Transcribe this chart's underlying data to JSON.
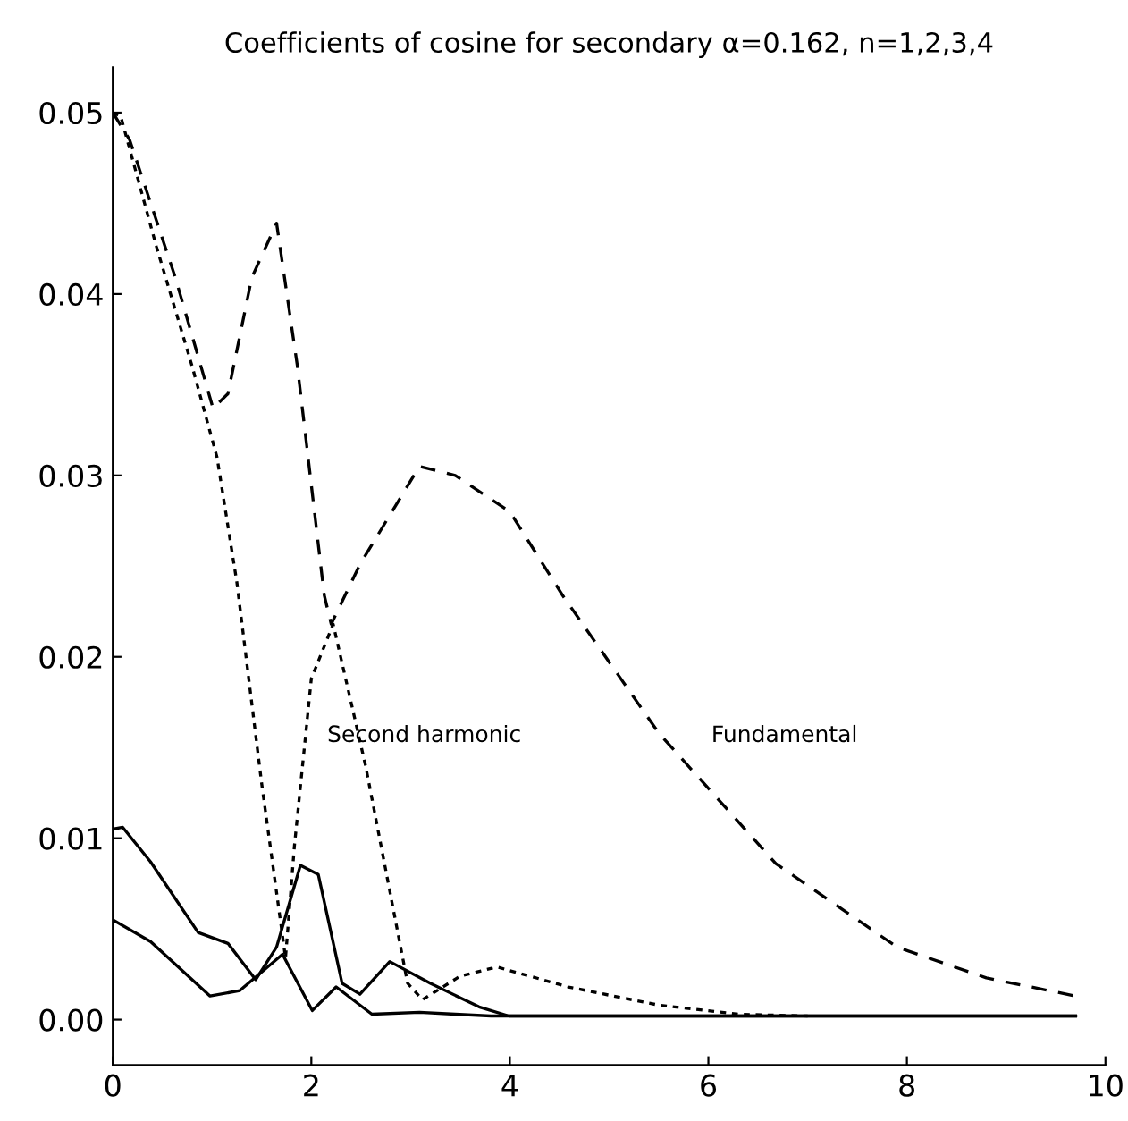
{
  "chart_data": {
    "type": "line",
    "title": "Coefficients of cosine for secondary α=0.162, n=1,2,3,4",
    "xlim": [
      0,
      10
    ],
    "xticks": [
      0,
      2,
      4,
      6,
      8,
      10
    ],
    "ylim": [
      -0.0025,
      0.0525
    ],
    "yticks": [
      {
        "value": 0,
        "label": "0.00"
      },
      {
        "value": 0.01,
        "label": "0.01"
      },
      {
        "value": 0.02,
        "label": "0.02"
      },
      {
        "value": 0.03,
        "label": "0.03"
      },
      {
        "value": 0.04,
        "label": "0.04"
      },
      {
        "value": 0.05,
        "label": "0.05"
      }
    ],
    "grid": false,
    "legend": false,
    "series": [
      {
        "color": "#000000",
        "line_style": "dashed",
        "x": [
          0,
          0.17,
          0.63,
          1.01,
          1.16,
          1.4,
          1.65,
          1.86,
          2.13,
          2.2,
          2.49,
          3.09,
          3.45,
          4.0,
          4.53,
          5.5,
          6.68,
          7.9,
          8.8,
          9.7
        ],
        "values": [
          0.05,
          0.0485,
          0.0409,
          0.0337,
          0.0345,
          0.0409,
          0.0439,
          0.036,
          0.0234,
          0.0218,
          0.0251,
          0.0305,
          0.03,
          0.028,
          0.0234,
          0.0158,
          0.0086,
          0.004,
          0.0023,
          0.0013
        ]
      },
      {
        "color": "#000000",
        "line_style": "dotted",
        "x": [
          0,
          0.08,
          0.44,
          0.8,
          1.05,
          1.25,
          1.5,
          1.74,
          1.83,
          2.0,
          2.22,
          2.55,
          2.97,
          3.12,
          3.5,
          3.87,
          4.59,
          5.5,
          6.3,
          7.0
        ],
        "values": [
          0.05,
          0.0498,
          0.0426,
          0.036,
          0.031,
          0.0241,
          0.013,
          0.0034,
          0.0096,
          0.0188,
          0.0218,
          0.0139,
          0.002,
          0.0011,
          0.0024,
          0.0029,
          0.0018,
          0.0008,
          0.0003,
          0.0002
        ]
      },
      {
        "color": "#000000",
        "line_style": "solid",
        "x": [
          0,
          0.1,
          0.38,
          0.86,
          1.16,
          1.44,
          1.65,
          1.89,
          2.07,
          2.31,
          2.49,
          2.79,
          3.2,
          3.69,
          3.99,
          9.7
        ],
        "values": [
          0.0105,
          0.0106,
          0.0087,
          0.0048,
          0.0042,
          0.0022,
          0.004,
          0.0085,
          0.008,
          0.002,
          0.0014,
          0.0032,
          0.002,
          0.0007,
          0.0002,
          0.0002
        ]
      },
      {
        "color": "#000000",
        "line_style": "solid",
        "x": [
          0,
          0.38,
          0.98,
          1.28,
          1.71,
          2.01,
          2.25,
          2.61,
          3.09,
          3.45,
          3.81,
          9.7
        ],
        "values": [
          0.0055,
          0.0043,
          0.0013,
          0.0016,
          0.0036,
          0.0005,
          0.0018,
          0.0003,
          0.0004,
          0.0003,
          0.0002,
          0.0002
        ]
      }
    ],
    "annotations": [
      "Second harmonic",
      "Fundamental"
    ]
  }
}
